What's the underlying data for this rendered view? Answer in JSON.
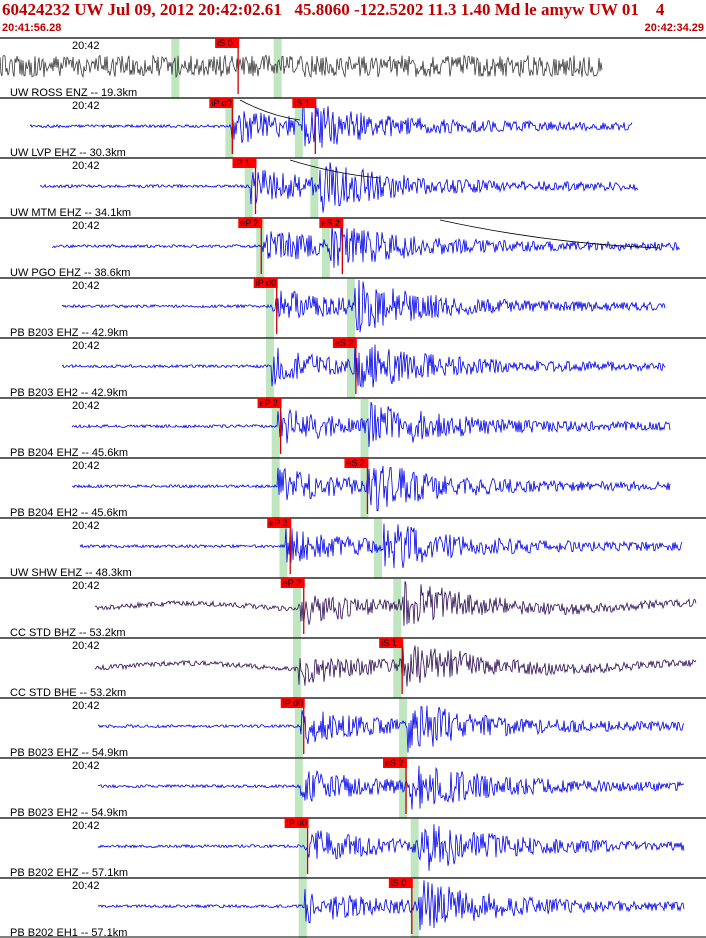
{
  "header": {
    "title": "60424232 UW Jul 09, 2012 20:42:02.61   45.8060 -122.5202 11.3 1.40 Md le amyw UW 01    4",
    "start_time": "20:41:56.28",
    "end_time": "20:42:34.29"
  },
  "colors": {
    "trace_default": "#0000ee",
    "trace_first": "#3a3a3a",
    "trace_bb": "#2e1055",
    "pick_flag": "#ff0000",
    "pick_line": "#cc0000",
    "window_band": "#bfe6bf",
    "header_text": "#c00000"
  },
  "chart_data": {
    "type": "line",
    "title": "60424232 UW Jul 09, 2012 20:42:02.61   45.8060 -122.5202 11.3 1.40 Md le amyw UW 01    4",
    "x_axis": {
      "start": "20:41:56.28",
      "end": "20:42:34.29",
      "unit": "s"
    },
    "traces": [
      {
        "label": "UW ROSS ENZ -- 19.3km",
        "tick": "20:42",
        "style": "grey",
        "p_band_s": 5.2,
        "s_band_s": 10.5,
        "picks": [
          {
            "label": "iS 0",
            "t": 8.4
          }
        ]
      },
      {
        "label": "UW LVP EHZ -- 30.3km",
        "tick": "20:42",
        "style": "blue",
        "p_band_s": 8.0,
        "s_band_s": 11.6,
        "picks": [
          {
            "label": "iP d0",
            "t": 8.1
          },
          {
            "label": "iS 1",
            "t": 12.4
          }
        ]
      },
      {
        "label": "UW MTM EHZ -- 34.1km",
        "tick": "20:42",
        "style": "blue",
        "p_band_s": 9.0,
        "s_band_s": 12.4,
        "picks": [
          {
            "label": "iP 1",
            "t": 9.3
          }
        ]
      },
      {
        "label": "UW PGO EHZ -- 38.6km",
        "tick": "20:42",
        "style": "blue",
        "p_band_s": 9.6,
        "s_band_s": 13.0,
        "picks": [
          {
            "label": "eP 2",
            "t": 9.6
          },
          {
            "label": "eS 2",
            "t": 13.8
          }
        ]
      },
      {
        "label": "PB B203 EHZ -- 42.9km",
        "tick": "20:42",
        "style": "blue",
        "p_band_s": 10.1,
        "s_band_s": 14.3,
        "picks": [
          {
            "label": "iP d0",
            "t": 10.4
          }
        ]
      },
      {
        "label": "PB B203 EH2 -- 42.9km",
        "tick": "20:42",
        "style": "blue",
        "p_band_s": 10.1,
        "s_band_s": 14.3,
        "picks": [
          {
            "label": "eS 2",
            "t": 14.5
          }
        ]
      },
      {
        "label": "PB B204 EHZ -- 45.6km",
        "tick": "20:42",
        "style": "blue",
        "p_band_s": 10.4,
        "s_band_s": 15.0,
        "picks": [
          {
            "label": "eP 2",
            "t": 10.6
          }
        ]
      },
      {
        "label": "PB B204 EH2 -- 45.6km",
        "tick": "20:42",
        "style": "blue",
        "p_band_s": 10.4,
        "s_band_s": 15.0,
        "picks": [
          {
            "label": "eS 2",
            "t": 15.1
          }
        ]
      },
      {
        "label": "UW SHW EHZ -- 48.3km",
        "tick": "20:42",
        "style": "blue",
        "p_band_s": 10.8,
        "s_band_s": 15.7,
        "picks": [
          {
            "label": "eP 2",
            "t": 11.1
          }
        ]
      },
      {
        "label": "CC STD BHZ -- 53.2km",
        "tick": "20:42",
        "style": "bb",
        "p_band_s": 11.5,
        "s_band_s": 16.7,
        "picks": [
          {
            "label": "eP 2",
            "t": 11.8
          }
        ]
      },
      {
        "label": "CC STD BHE -- 53.2km",
        "tick": "20:42",
        "style": "bb",
        "p_band_s": 11.5,
        "s_band_s": 16.7,
        "picks": [
          {
            "label": "iS 1",
            "t": 16.9
          }
        ]
      },
      {
        "label": "PB B023 EHZ -- 54.9km",
        "tick": "20:42",
        "style": "blue",
        "p_band_s": 11.6,
        "s_band_s": 17.0,
        "picks": [
          {
            "label": "iP d0",
            "t": 11.8
          }
        ]
      },
      {
        "label": "PB B023 EH2 -- 54.9km",
        "tick": "20:42",
        "style": "blue",
        "p_band_s": 11.6,
        "s_band_s": 17.0,
        "picks": [
          {
            "label": "eS 2",
            "t": 17.1
          }
        ]
      },
      {
        "label": "PB B202 EHZ -- 57.1km",
        "tick": "20:42",
        "style": "blue",
        "p_band_s": 11.8,
        "s_band_s": 17.6,
        "picks": [
          {
            "label": "iP d0",
            "t": 12.0
          }
        ]
      },
      {
        "label": "PB B202 EH1 -- 57.1km",
        "tick": "20:42",
        "style": "blue",
        "p_band_s": 11.8,
        "s_band_s": 17.6,
        "picks": [
          {
            "label": "iS 0",
            "t": 17.4
          }
        ]
      }
    ]
  }
}
